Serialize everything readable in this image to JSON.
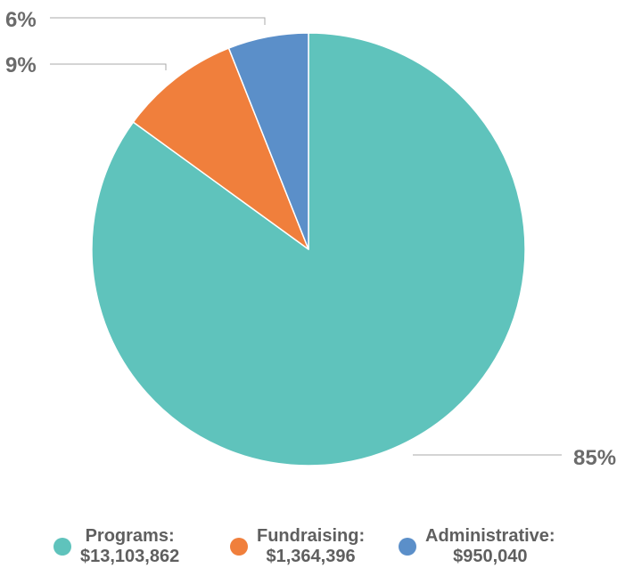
{
  "chart_data": {
    "type": "pie",
    "title": "",
    "slices": [
      {
        "label": "Programs",
        "amount": "$13,103,862",
        "value": 85,
        "value_label": "85%",
        "color": "#5fc3bc"
      },
      {
        "label": "Fundraising",
        "amount": "$1,364,396",
        "value": 9,
        "value_label": "9%",
        "color": "#f07f3c"
      },
      {
        "label": "Administrative",
        "amount": "$950,040",
        "value": 6,
        "value_label": "6%",
        "color": "#5b8fc9"
      }
    ],
    "legend_placement": "bottom"
  },
  "legend": {
    "items": [
      {
        "name": "Programs:",
        "amount": "$13,103,862"
      },
      {
        "name": "Fundraising:",
        "amount": "$1,364,396"
      },
      {
        "name": "Administrative:",
        "amount": "$950,040"
      }
    ]
  }
}
